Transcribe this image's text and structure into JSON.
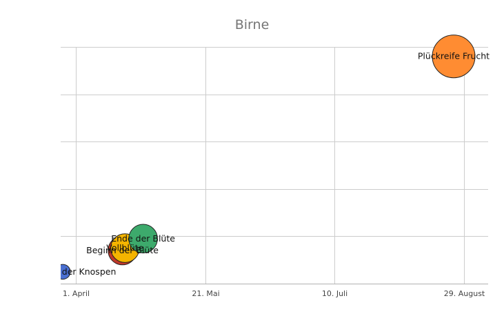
{
  "chart_data": {
    "type": "scatter",
    "title": "Birne",
    "xlabel": "",
    "ylabel": "",
    "x_ticks": [
      {
        "value": "04-01",
        "label": "1. April"
      },
      {
        "value": "05-21",
        "label": "21. Mai"
      },
      {
        "value": "07-10",
        "label": "10. Juli"
      },
      {
        "value": "08-29",
        "label": "29. August"
      }
    ],
    "y_grid_lines": 5,
    "grid": true,
    "bubbles": [
      {
        "name": "Aufbrechen der Knospen",
        "label": "Aufbrechen der Knospen",
        "date": "03-27",
        "y": 0.05,
        "size": 0.12,
        "color": "#4a6fd1"
      },
      {
        "name": "Beginn der Blüte",
        "label": "Beginn der Blüte",
        "date": "04-19",
        "y": 0.14,
        "size": 0.45,
        "color": "#c0392b"
      },
      {
        "name": "Vollblüte",
        "label": "Vollblüte",
        "date": "04-20",
        "y": 0.15,
        "size": 0.45,
        "color": "#f4b400"
      },
      {
        "name": "Ende der Blüte",
        "label": "Ende der Blüte",
        "date": "04-27",
        "y": 0.19,
        "size": 0.45,
        "color": "#3daa6c"
      },
      {
        "name": "Plückreife Frucht",
        "label": "Plückreife Frucht",
        "date": "08-25",
        "y": 0.96,
        "size": 1.0,
        "color": "#ff8c32"
      }
    ]
  }
}
